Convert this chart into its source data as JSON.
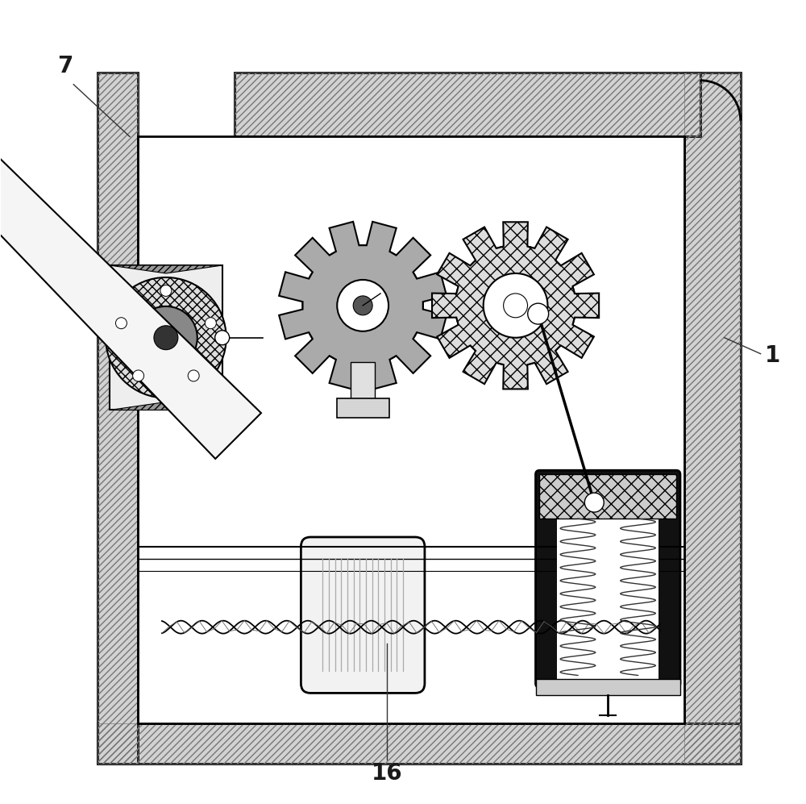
{
  "fig_width": 10.0,
  "fig_height": 9.97,
  "bg_color": "#ffffff",
  "line_color": "#000000",
  "label_7": "7",
  "label_1": "1",
  "label_16": "16",
  "wall_fill": "#d8d8d8",
  "inner_fill": "#ffffff",
  "gear1_fill": "#aaaaaa",
  "gear2_fill": "#cccccc",
  "motor_fill": "#f0f0f0",
  "cyl_dark": "#111111",
  "spring_color": "#333333"
}
